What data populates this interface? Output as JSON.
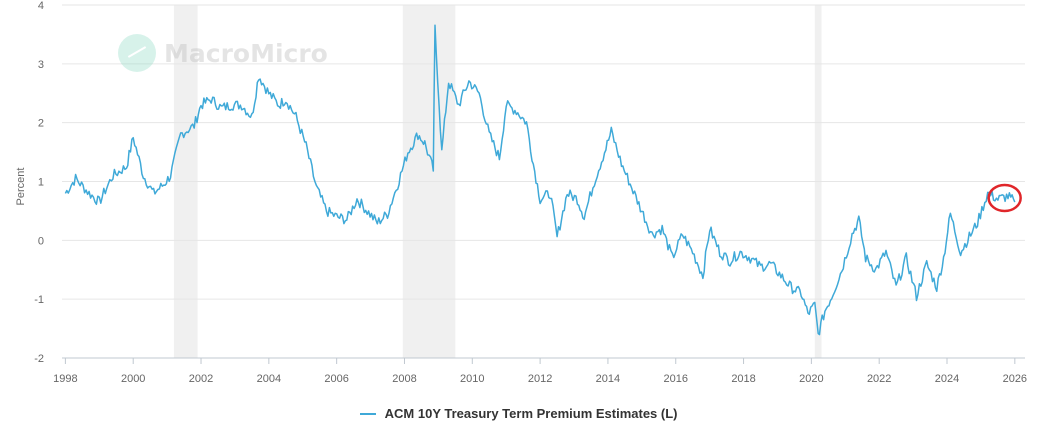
{
  "chart_data": {
    "type": "line",
    "title": "",
    "xlabel": "",
    "ylabel": "Percent",
    "ylim": [
      -2,
      4
    ],
    "xlim": [
      1997.9,
      2026.3
    ],
    "yticks": [
      "-2",
      "-1",
      "0",
      "1",
      "2",
      "3",
      "4"
    ],
    "xticks": [
      "1998",
      "2000",
      "2002",
      "2004",
      "2006",
      "2008",
      "2010",
      "2012",
      "2014",
      "2016",
      "2018",
      "2020",
      "2022",
      "2024",
      "2026"
    ],
    "recessions": [
      [
        2001.2,
        2001.9
      ],
      [
        2007.95,
        2009.5
      ],
      [
        2020.1,
        2020.3
      ]
    ],
    "series": [
      {
        "name": "ACM 10Y Treasury Term Premium Estimates (L)",
        "color": "#3fa9d8",
        "x": [
          1998.0,
          1998.3,
          1998.7,
          1999.0,
          1999.4,
          1999.8,
          2000.0,
          2000.3,
          2000.6,
          2000.9,
          2001.1,
          2001.4,
          2001.8,
          2002.0,
          2002.3,
          2002.6,
          2002.9,
          2003.2,
          2003.5,
          2003.7,
          2004.0,
          2004.3,
          2004.5,
          2004.8,
          2005.1,
          2005.4,
          2005.7,
          2006.0,
          2006.3,
          2006.6,
          2006.9,
          2007.2,
          2007.5,
          2007.8,
          2008.1,
          2008.4,
          2008.6,
          2008.85,
          2008.9,
          2009.1,
          2009.3,
          2009.6,
          2009.9,
          2010.2,
          2010.5,
          2010.8,
          2011.0,
          2011.3,
          2011.6,
          2011.8,
          2012.0,
          2012.3,
          2012.5,
          2012.8,
          2013.1,
          2013.3,
          2013.6,
          2013.9,
          2014.1,
          2014.4,
          2014.7,
          2015.0,
          2015.3,
          2015.6,
          2015.9,
          2016.2,
          2016.5,
          2016.8,
          2017.0,
          2017.3,
          2017.6,
          2017.9,
          2018.2,
          2018.5,
          2018.8,
          2019.1,
          2019.4,
          2019.7,
          2019.9,
          2020.1,
          2020.2,
          2020.4,
          2020.6,
          2020.9,
          2021.2,
          2021.4,
          2021.6,
          2021.9,
          2022.2,
          2022.5,
          2022.8,
          2023.1,
          2023.4,
          2023.7,
          2023.9,
          2024.1,
          2024.4,
          2024.7,
          2024.9,
          2025.2,
          2025.5,
          2025.8,
          2026.0
        ],
        "values": [
          0.8,
          1.05,
          0.8,
          0.65,
          1.1,
          1.25,
          1.75,
          1.1,
          0.8,
          0.95,
          1.1,
          1.8,
          1.95,
          2.3,
          2.4,
          2.25,
          2.3,
          2.3,
          2.1,
          2.8,
          2.5,
          2.3,
          2.4,
          2.1,
          1.6,
          0.9,
          0.5,
          0.4,
          0.35,
          0.7,
          0.5,
          0.3,
          0.45,
          0.95,
          1.5,
          1.8,
          1.65,
          1.2,
          3.6,
          1.5,
          2.7,
          2.3,
          2.7,
          2.5,
          1.8,
          1.4,
          2.3,
          2.2,
          2.0,
          1.3,
          0.7,
          0.8,
          0.05,
          0.8,
          0.7,
          0.4,
          1.0,
          1.5,
          1.85,
          1.3,
          0.9,
          0.5,
          0.1,
          0.2,
          -0.3,
          0.1,
          -0.2,
          -0.6,
          0.2,
          -0.2,
          -0.35,
          -0.2,
          -0.3,
          -0.45,
          -0.4,
          -0.6,
          -0.8,
          -0.9,
          -1.25,
          -1.1,
          -1.6,
          -1.2,
          -0.95,
          -0.5,
          0.1,
          0.35,
          -0.3,
          -0.5,
          -0.2,
          -0.8,
          -0.3,
          -0.95,
          -0.4,
          -0.8,
          -0.3,
          0.45,
          -0.2,
          0.1,
          0.3,
          0.8,
          0.7,
          0.75,
          0.65
        ]
      }
    ],
    "annotation": {
      "type": "circle",
      "color": "#e0262a",
      "x": 2025.7,
      "y": 0.72
    }
  },
  "watermark": {
    "text": "MacroMicro"
  }
}
